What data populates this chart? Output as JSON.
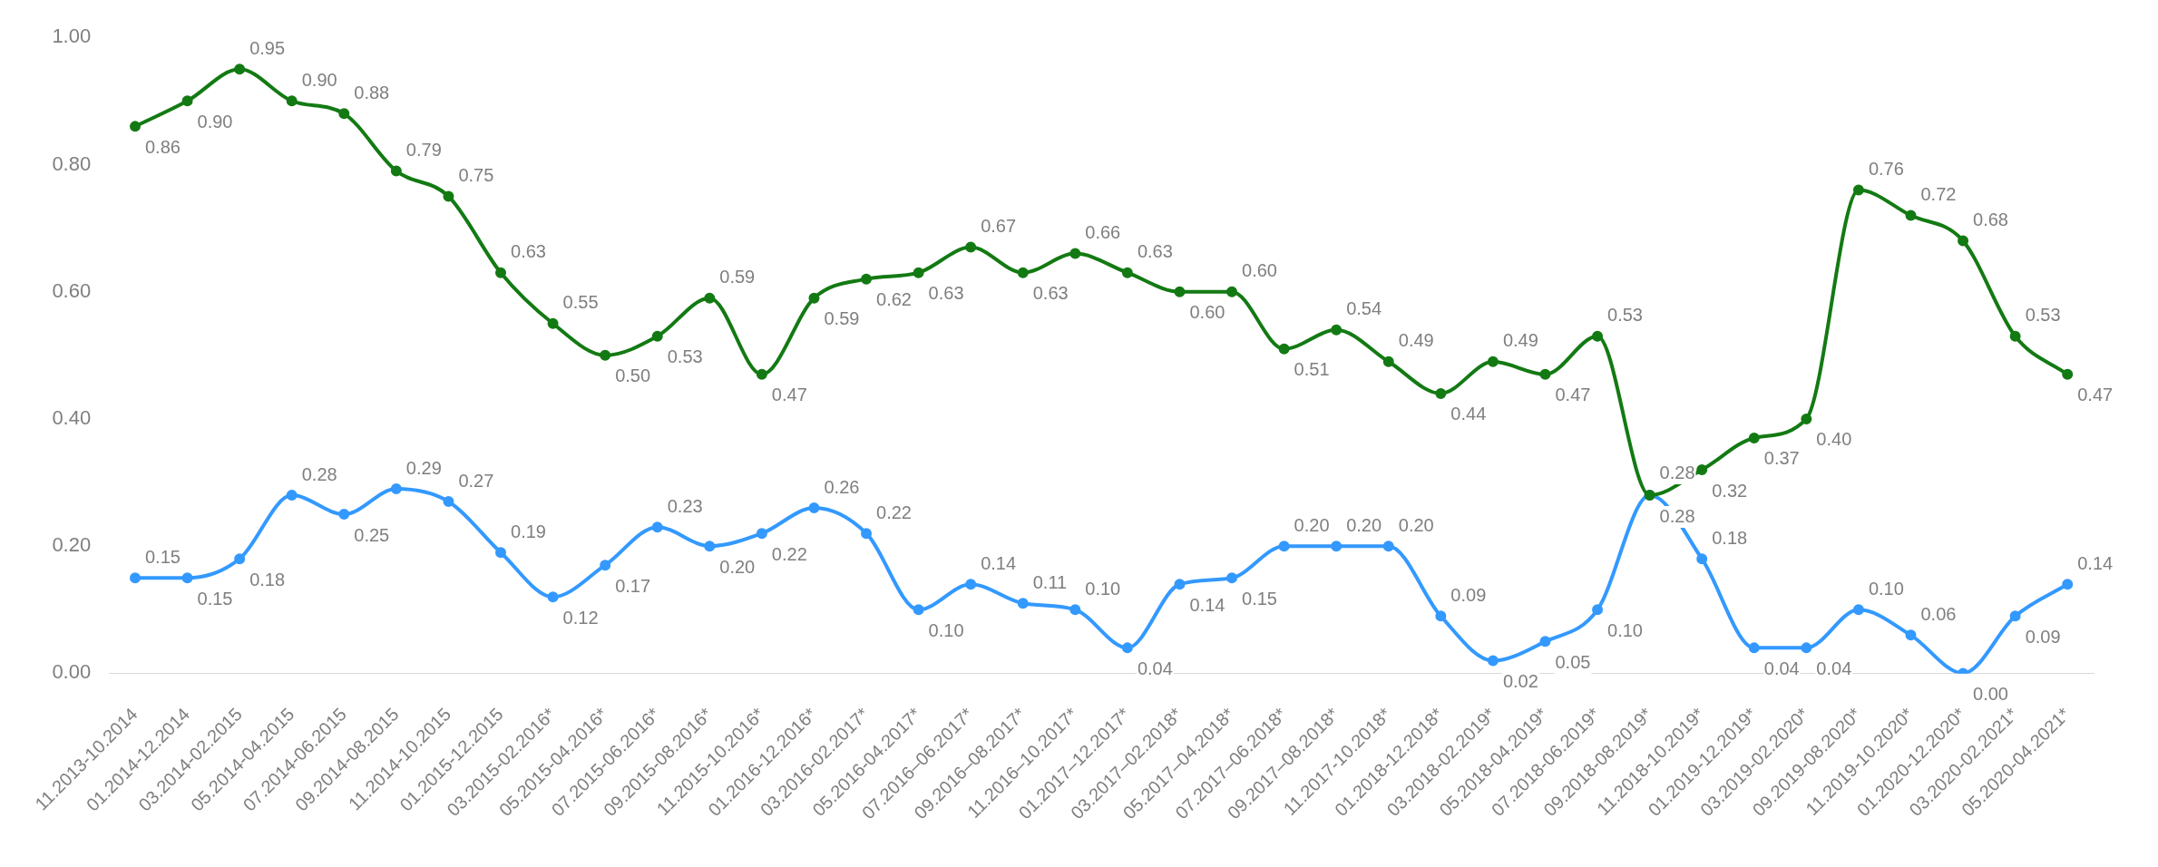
{
  "chart_data": {
    "type": "line",
    "categories": [
      "11.2013-10.2014",
      "01.2014-12.2014",
      "03.2014-02.2015",
      "05.2014-04.2015",
      "07.2014-06.2015",
      "09.2014-08.2015",
      "11.2014-10.2015",
      "01.2015-12.2015",
      "03.2015-02.2016*",
      "05.2015-04.2016*",
      "07.2015-06.2016*",
      "09.2015-08.2016*",
      "11.2015-10.2016*",
      "01.2016-12.2016*",
      "03.2016-02.2017*",
      "05.2016-04.2017*",
      "07.2016–06.2017*",
      "09.2016–08.2017*",
      "11.2016–10.2017*",
      "01.2017–12.2017*",
      "03.2017–02.2018*",
      "05.2017–04.2018*",
      "07.2017–06.2018*",
      "09.2017–08.2018*",
      "11.2017-10.2018*",
      "01.2018-12.2018*",
      "03.2018-02.2019*",
      "05.2018-04.2019*",
      "07.2018-06.2019*",
      "09.2018-08.2019*",
      "11.2018-10.2019*",
      "01.2019-12.2019*",
      "03.2019-02.2020*",
      "09.2019-08.2020*",
      "11.2019-10.2020*",
      "01.2020-12.2020*",
      "03.2020-02.2021*",
      "05.2020-04.2021*"
    ],
    "series": [
      {
        "color": "#137a13",
        "values": [
          0.86,
          0.9,
          0.95,
          0.9,
          0.88,
          0.79,
          0.75,
          0.63,
          0.55,
          0.5,
          0.53,
          0.59,
          0.47,
          0.59,
          0.62,
          0.63,
          0.67,
          0.63,
          0.66,
          0.63,
          0.6,
          0.6,
          0.51,
          0.54,
          0.49,
          0.44,
          0.49,
          0.47,
          0.53,
          0.28,
          0.32,
          0.37,
          0.4,
          0.76,
          0.72,
          0.68,
          0.53,
          0.47
        ],
        "value_labels": [
          "0.86",
          "0.90",
          "0.95",
          "0.90",
          "0.88",
          "0.79",
          "0.75",
          "0.63",
          "0.55",
          "0.50",
          "0.53",
          "0.59",
          "0.47",
          "0.59",
          "0.62",
          "0.63",
          "0.67",
          "0.63",
          "0.66",
          "0.63",
          "0.60",
          "0.60",
          "0.51",
          "0.54",
          "0.49",
          "0.44",
          "0.49",
          "0.47",
          "0.53",
          "0.28",
          "0.32",
          "0.37",
          "0.40",
          "0.76",
          "0.72",
          "0.68",
          "0.53",
          "0.47"
        ]
      },
      {
        "color": "#3399ff",
        "values": [
          0.15,
          0.15,
          0.18,
          0.28,
          0.25,
          0.29,
          0.27,
          0.19,
          0.12,
          0.17,
          0.23,
          0.2,
          0.22,
          0.26,
          0.22,
          0.1,
          0.14,
          0.11,
          0.1,
          0.04,
          0.14,
          0.15,
          0.2,
          0.2,
          0.2,
          0.09,
          0.02,
          0.05,
          0.1,
          0.28,
          0.18,
          0.04,
          0.04,
          0.1,
          0.06,
          0.0,
          0.09,
          0.14
        ],
        "value_labels": [
          "0.15",
          "0.15",
          "0.18",
          "0.28",
          "0.25",
          "0.29",
          "0.27",
          "0.19",
          "0.12",
          "0.17",
          "0.23",
          "0.20",
          "0.22",
          "0.26",
          "0.22",
          "0.10",
          "0.14",
          "0.11",
          "0.10",
          "0.04",
          "0.14",
          "0.15",
          "0.20",
          "0.20",
          "0.20",
          "0.09",
          "0.02",
          "0.05",
          "0.10",
          "0.28",
          "0.18",
          "0.04",
          "0.04",
          "0.10",
          "0.06",
          "0.00",
          "0.09",
          "0.14"
        ]
      }
    ],
    "ylim": [
      0,
      1
    ],
    "yticks": [
      {
        "value": 0,
        "label": "0.00"
      },
      {
        "value": 0.2,
        "label": "0.20"
      },
      {
        "value": 0.4,
        "label": "0.40"
      },
      {
        "value": 0.6,
        "label": "0.60"
      },
      {
        "value": 0.8,
        "label": "0.80"
      },
      {
        "value": 1,
        "label": "1.00"
      }
    ],
    "grid": false,
    "legend": false,
    "marker": "circle",
    "line_style": "solid"
  }
}
